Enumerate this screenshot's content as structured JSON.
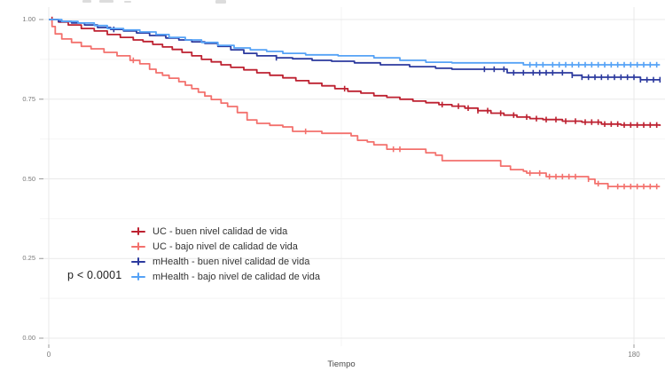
{
  "chart_data": {
    "type": "line",
    "subtype": "kaplan-meier-step-survival",
    "title": "",
    "xlabel": "Tiempo",
    "ylabel": "",
    "xlim": [
      0,
      188
    ],
    "ylim": [
      0.0,
      1.0
    ],
    "grid": true,
    "legend_position": "middle-left",
    "p_value": "p < 0.0001",
    "x_ticks": [
      {
        "t": 0,
        "label": "0"
      },
      {
        "t": 180,
        "label": "180"
      }
    ],
    "y_ticks": [
      {
        "s": 1.0,
        "label": "1.00"
      },
      {
        "s": 0.75,
        "label": "0.75"
      },
      {
        "s": 0.5,
        "label": "0.50"
      },
      {
        "s": 0.25,
        "label": "0.25"
      },
      {
        "s": 0.0,
        "label": "0.00"
      }
    ],
    "y_minor_gridlines": [
      0.875,
      0.625,
      0.375,
      0.125
    ],
    "x_minor_gridlines": [
      90
    ],
    "series": [
      {
        "name": "UC - buen nivel calidad de vida",
        "color": "#bd2130",
        "points": [
          [
            0,
            1.0
          ],
          [
            3,
            0.992
          ],
          [
            6,
            0.983
          ],
          [
            10,
            0.972
          ],
          [
            14,
            0.964
          ],
          [
            18,
            0.953
          ],
          [
            22,
            0.944
          ],
          [
            26,
            0.936
          ],
          [
            29,
            0.931
          ],
          [
            32,
            0.922
          ],
          [
            35,
            0.914
          ],
          [
            38,
            0.906
          ],
          [
            41,
            0.897
          ],
          [
            44,
            0.886
          ],
          [
            47,
            0.875
          ],
          [
            50,
            0.867
          ],
          [
            53,
            0.858
          ],
          [
            56,
            0.85
          ],
          [
            60,
            0.842
          ],
          [
            64,
            0.833
          ],
          [
            68,
            0.825
          ],
          [
            72,
            0.817
          ],
          [
            76,
            0.808
          ],
          [
            80,
            0.8
          ],
          [
            84,
            0.792
          ],
          [
            88,
            0.783
          ],
          [
            92,
            0.775
          ],
          [
            96,
            0.769
          ],
          [
            100,
            0.761
          ],
          [
            104,
            0.756
          ],
          [
            108,
            0.75
          ],
          [
            112,
            0.744
          ],
          [
            116,
            0.739
          ],
          [
            120,
            0.733
          ],
          [
            124,
            0.728
          ],
          [
            128,
            0.722
          ],
          [
            132,
            0.714
          ],
          [
            136,
            0.706
          ],
          [
            140,
            0.7
          ],
          [
            144,
            0.694
          ],
          [
            148,
            0.689
          ],
          [
            152,
            0.686
          ],
          [
            158,
            0.681
          ],
          [
            164,
            0.678
          ],
          [
            170,
            0.672
          ],
          [
            176,
            0.669
          ],
          [
            188,
            0.666
          ]
        ],
        "censor_times": [
          1,
          91,
          121,
          126,
          129,
          132,
          135,
          139,
          143,
          147,
          150,
          153,
          156,
          159,
          162,
          165,
          167,
          169,
          171,
          173,
          175,
          177,
          179,
          181,
          183,
          185,
          187
        ]
      },
      {
        "name": "UC - bajo nivel de calidad de vida",
        "color": "#f3716d",
        "points": [
          [
            0,
            1.0
          ],
          [
            1,
            0.978
          ],
          [
            2,
            0.955
          ],
          [
            4,
            0.939
          ],
          [
            7,
            0.928
          ],
          [
            10,
            0.916
          ],
          [
            13,
            0.908
          ],
          [
            17,
            0.897
          ],
          [
            21,
            0.886
          ],
          [
            25,
            0.872
          ],
          [
            28,
            0.861
          ],
          [
            31,
            0.844
          ],
          [
            33,
            0.833
          ],
          [
            35,
            0.825
          ],
          [
            37,
            0.816
          ],
          [
            40,
            0.805
          ],
          [
            42,
            0.794
          ],
          [
            44,
            0.783
          ],
          [
            46,
            0.772
          ],
          [
            48,
            0.76
          ],
          [
            50,
            0.749
          ],
          [
            53,
            0.738
          ],
          [
            55,
            0.727
          ],
          [
            58,
            0.708
          ],
          [
            61,
            0.685
          ],
          [
            64,
            0.674
          ],
          [
            68,
            0.668
          ],
          [
            72,
            0.663
          ],
          [
            75,
            0.649
          ],
          [
            84,
            0.643
          ],
          [
            93,
            0.635
          ],
          [
            95,
            0.621
          ],
          [
            98,
            0.616
          ],
          [
            100,
            0.607
          ],
          [
            104,
            0.593
          ],
          [
            116,
            0.582
          ],
          [
            119,
            0.574
          ],
          [
            121,
            0.557
          ],
          [
            139,
            0.54
          ],
          [
            142,
            0.529
          ],
          [
            146,
            0.524
          ],
          [
            147,
            0.518
          ],
          [
            153,
            0.507
          ],
          [
            166,
            0.499
          ],
          [
            168,
            0.485
          ],
          [
            172,
            0.476
          ],
          [
            188,
            0.476
          ]
        ],
        "censor_times": [
          26,
          79,
          106,
          108,
          148,
          151,
          154,
          156,
          158,
          160,
          162,
          166,
          169,
          172,
          175,
          177,
          179,
          181,
          183,
          185,
          187
        ]
      },
      {
        "name": "mHealth - buen nivel calidad de vida",
        "color": "#2c3a9e",
        "points": [
          [
            0,
            1.0
          ],
          [
            3,
            0.994
          ],
          [
            7,
            0.989
          ],
          [
            11,
            0.983
          ],
          [
            15,
            0.975
          ],
          [
            19,
            0.969
          ],
          [
            23,
            0.964
          ],
          [
            27,
            0.958
          ],
          [
            31,
            0.95
          ],
          [
            36,
            0.942
          ],
          [
            40,
            0.936
          ],
          [
            44,
            0.93
          ],
          [
            48,
            0.925
          ],
          [
            52,
            0.916
          ],
          [
            56,
            0.905
          ],
          [
            60,
            0.894
          ],
          [
            64,
            0.886
          ],
          [
            70,
            0.88
          ],
          [
            75,
            0.877
          ],
          [
            81,
            0.872
          ],
          [
            87,
            0.869
          ],
          [
            94,
            0.864
          ],
          [
            102,
            0.858
          ],
          [
            111,
            0.852
          ],
          [
            119,
            0.847
          ],
          [
            124,
            0.844
          ],
          [
            141,
            0.833
          ],
          [
            161,
            0.825
          ],
          [
            164,
            0.819
          ],
          [
            182,
            0.811
          ],
          [
            188,
            0.811
          ]
        ],
        "censor_times": [
          20,
          70,
          134,
          137,
          140,
          143,
          146,
          149,
          151,
          153,
          155,
          158,
          161,
          164,
          166,
          168,
          170,
          172,
          174,
          176,
          178,
          180,
          182,
          184,
          186,
          188
        ]
      },
      {
        "name": "mHealth - bajo nivel de calidad de vida",
        "color": "#55a2f6",
        "points": [
          [
            0,
            1.0
          ],
          [
            4,
            0.994
          ],
          [
            9,
            0.989
          ],
          [
            14,
            0.981
          ],
          [
            18,
            0.972
          ],
          [
            23,
            0.967
          ],
          [
            28,
            0.961
          ],
          [
            33,
            0.953
          ],
          [
            37,
            0.944
          ],
          [
            42,
            0.936
          ],
          [
            47,
            0.928
          ],
          [
            52,
            0.919
          ],
          [
            57,
            0.911
          ],
          [
            62,
            0.905
          ],
          [
            67,
            0.9
          ],
          [
            72,
            0.894
          ],
          [
            79,
            0.889
          ],
          [
            89,
            0.886
          ],
          [
            100,
            0.88
          ],
          [
            108,
            0.872
          ],
          [
            116,
            0.866
          ],
          [
            124,
            0.864
          ],
          [
            146,
            0.858
          ],
          [
            188,
            0.858
          ]
        ],
        "censor_times": [
          148,
          150,
          152,
          155,
          157,
          159,
          161,
          163,
          165,
          167,
          169,
          171,
          173,
          175,
          177,
          179,
          181,
          183,
          185,
          187
        ]
      }
    ]
  },
  "style": {
    "grid_major_color": "#e9e9e9",
    "grid_minor_color": "#f4f4f4",
    "tick_mark_color": "#9a9a9a",
    "axis_text_color": "#7a7a7a"
  }
}
